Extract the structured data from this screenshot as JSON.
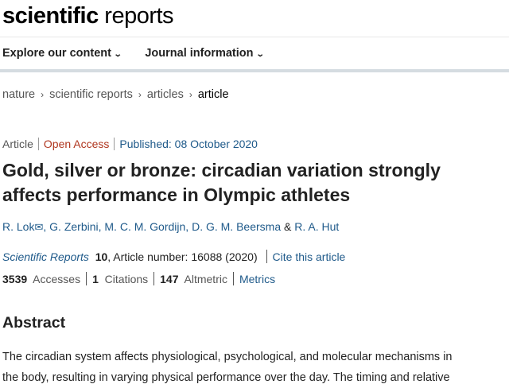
{
  "header": {
    "logo_bold": "scientific",
    "logo_rest": "reports"
  },
  "nav": [
    {
      "label": "Explore our content"
    },
    {
      "label": "Journal information"
    }
  ],
  "breadcrumb": [
    "nature",
    "scientific reports",
    "articles",
    "article"
  ],
  "meta": {
    "type": "Article",
    "access": "Open Access",
    "published": "Published: 08 October 2020"
  },
  "title": "Gold, silver or bronze: circadian variation strongly affects performance in Olympic athletes",
  "authors": [
    "R. Lok",
    ", G. Zerbini, M. C. M. Gordijn, D. G. M. Beersma",
    "&",
    "R. A. Hut"
  ],
  "citation": {
    "journal": "Scientific Reports",
    "volume": "10",
    "rest": ", Article number: 16088 (2020)",
    "cite_link": "Cite this article"
  },
  "metrics": {
    "accesses": "3539",
    "accesses_label": "Accesses",
    "citations": "1",
    "citations_label": "Citations",
    "altmetric": "147",
    "altmetric_label": "Altmetric",
    "metrics_link": "Metrics"
  },
  "abstract": {
    "heading": "Abstract",
    "lines": [
      "The circadian system affects physiological, psychological, and molecular mechanisms in",
      "the body, resulting in varying physical performance over the day. The timing and relative"
    ]
  }
}
